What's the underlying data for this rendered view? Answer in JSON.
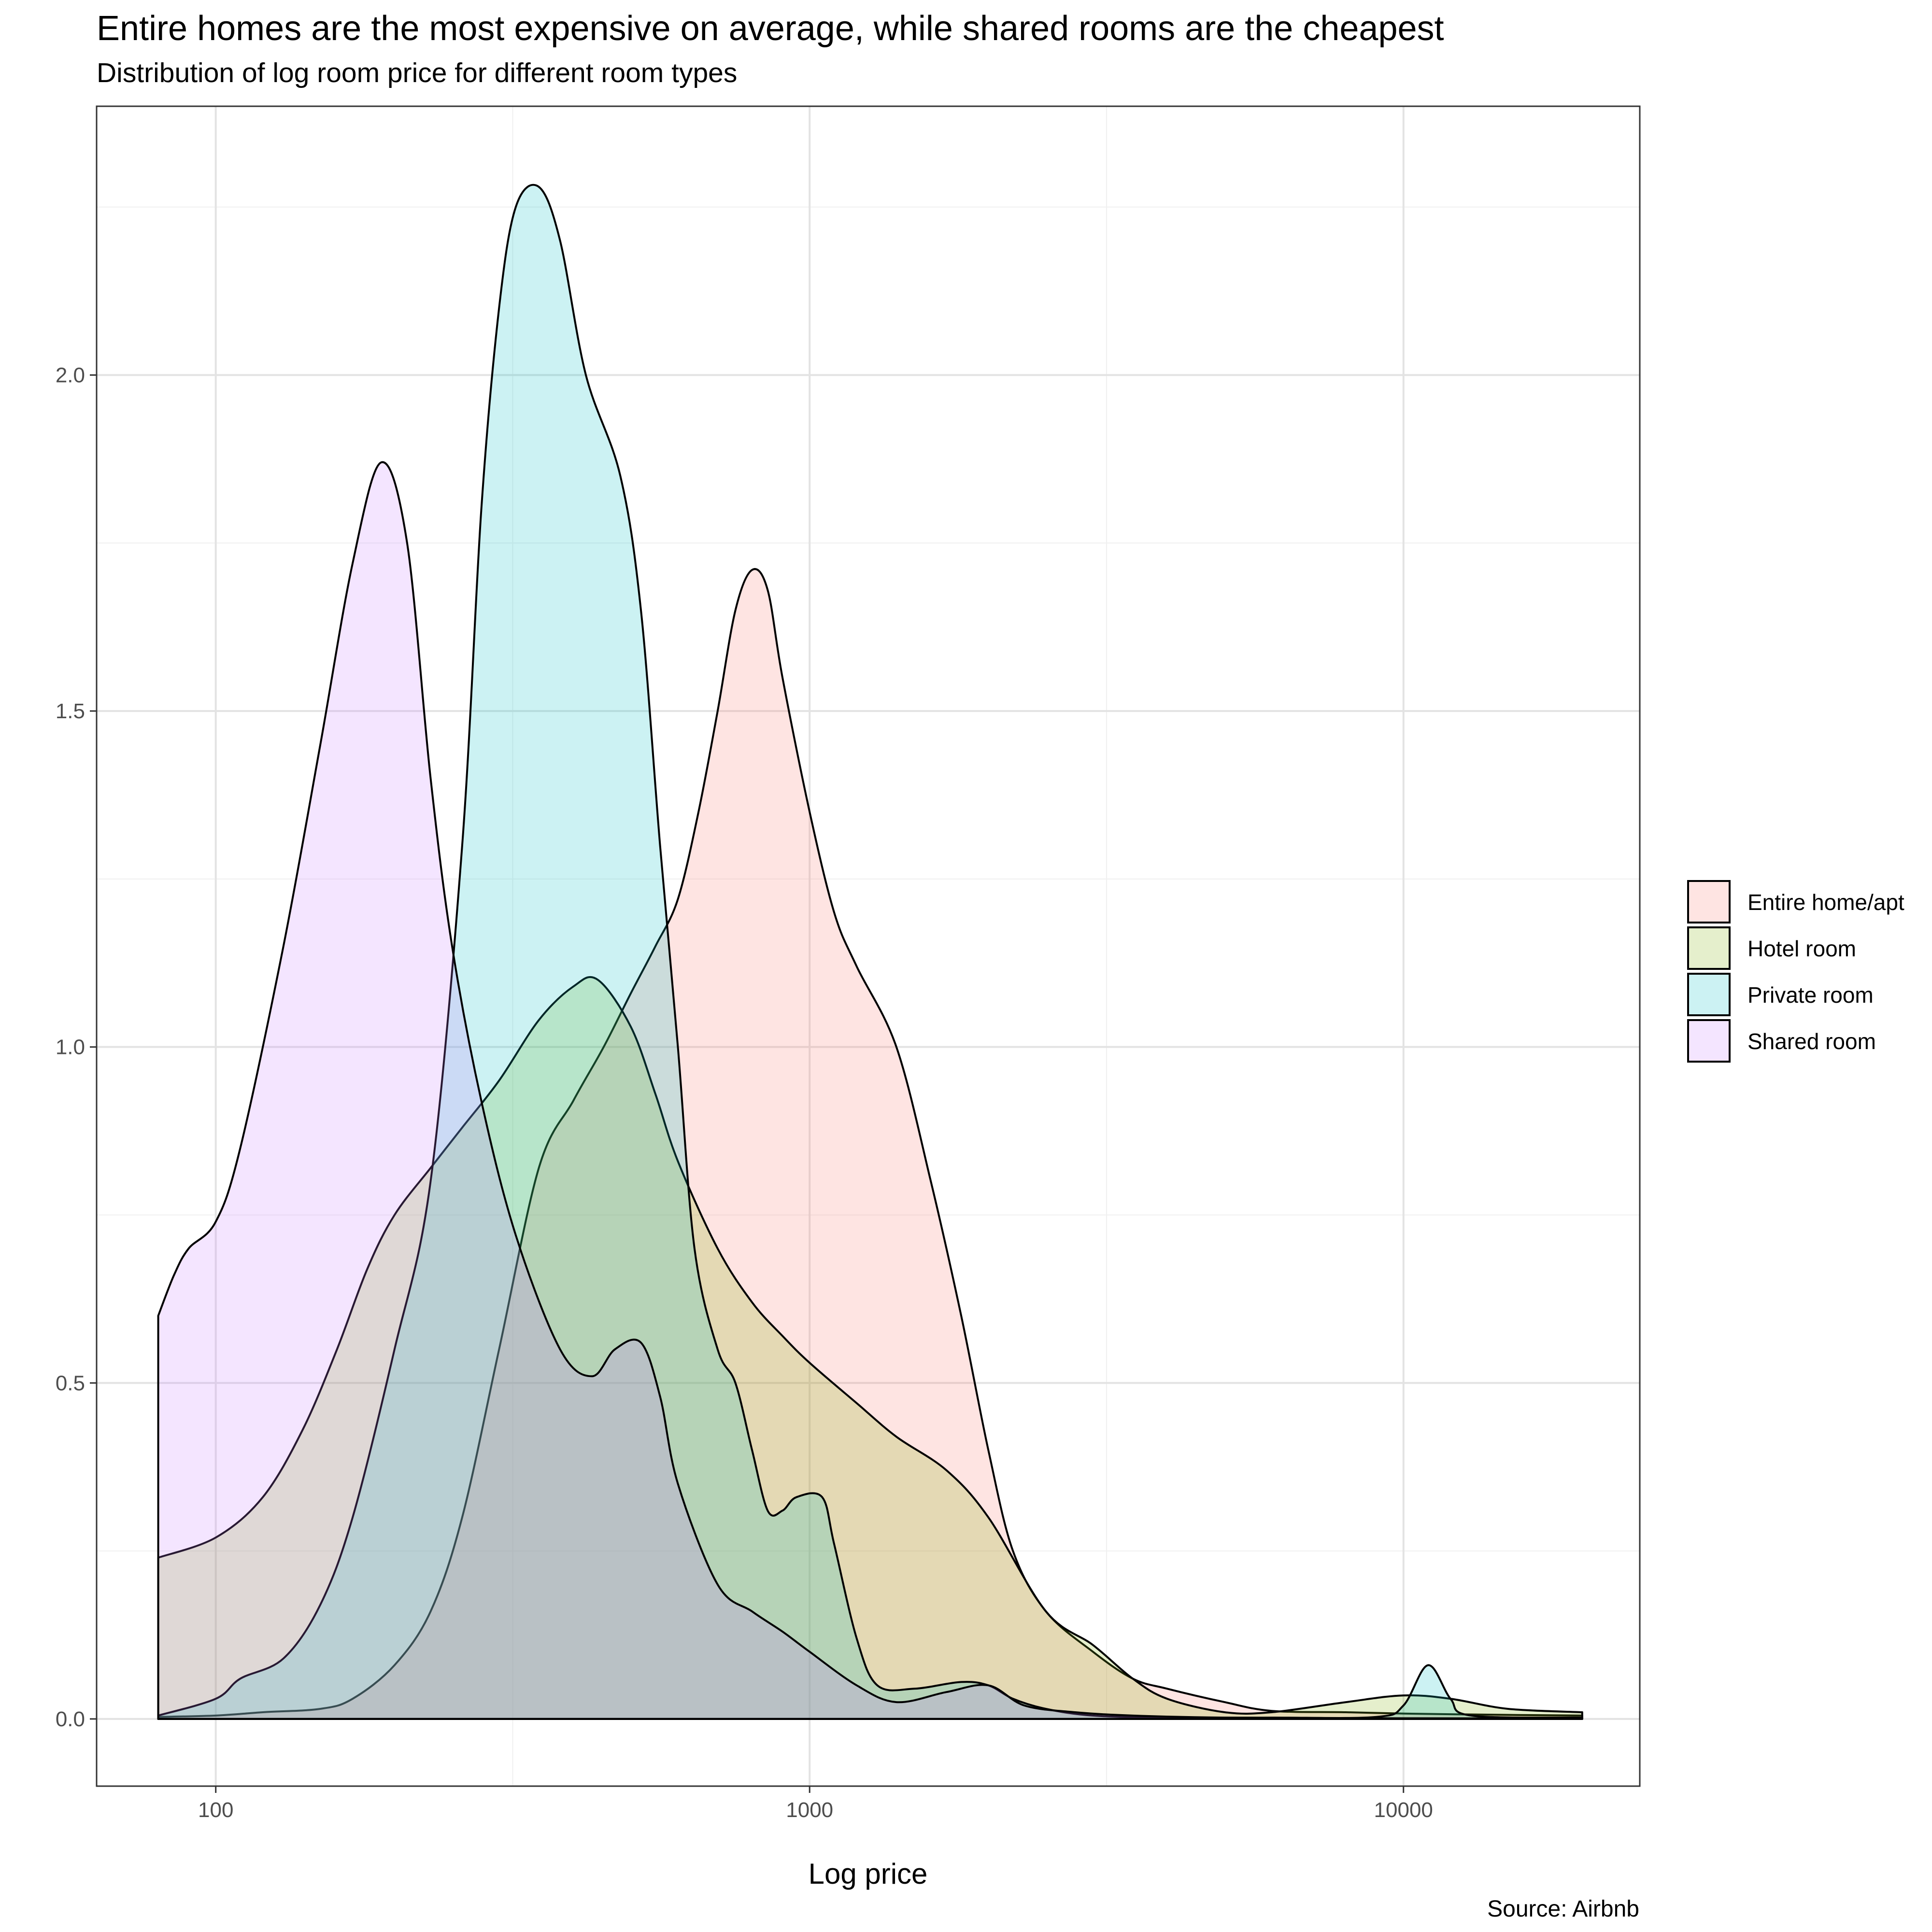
{
  "title": "Entire homes are the most expensive on average, while shared rooms are the cheapest",
  "subtitle": "Distribution of log room price for different room types",
  "caption": "Source: Airbnb",
  "chart_data": {
    "type": "area",
    "xlabel": "Log price",
    "ylabel": "",
    "x_scale": "log10",
    "xlim": [
      63,
      25000
    ],
    "ylim": [
      -0.1,
      2.4
    ],
    "x_ticks": [
      100,
      1000,
      10000
    ],
    "x_tick_labels": [
      "100",
      "1000",
      "10000"
    ],
    "y_ticks": [
      0,
      0.5,
      1,
      1.5,
      2
    ],
    "y_tick_labels": [
      "0.0",
      "0.5",
      "1.0",
      "1.5",
      "2.0"
    ],
    "grid": true,
    "legend_position": "right",
    "series": [
      {
        "name": "Entire home/apt",
        "color": "#F8766D",
        "points": [
          [
            80,
            0.003
          ],
          [
            100,
            0.005
          ],
          [
            120,
            0.01
          ],
          [
            150,
            0.015
          ],
          [
            170,
            0.03
          ],
          [
            200,
            0.08
          ],
          [
            230,
            0.16
          ],
          [
            260,
            0.3
          ],
          [
            300,
            0.55
          ],
          [
            350,
            0.82
          ],
          [
            400,
            0.92
          ],
          [
            450,
            1.0
          ],
          [
            500,
            1.08
          ],
          [
            550,
            1.15
          ],
          [
            600,
            1.22
          ],
          [
            650,
            1.35
          ],
          [
            700,
            1.5
          ],
          [
            750,
            1.65
          ],
          [
            800,
            1.71
          ],
          [
            850,
            1.68
          ],
          [
            900,
            1.55
          ],
          [
            1000,
            1.35
          ],
          [
            1100,
            1.2
          ],
          [
            1200,
            1.12
          ],
          [
            1400,
            1.0
          ],
          [
            1600,
            0.8
          ],
          [
            1800,
            0.6
          ],
          [
            2000,
            0.4
          ],
          [
            2200,
            0.25
          ],
          [
            2500,
            0.16
          ],
          [
            3000,
            0.1
          ],
          [
            3500,
            0.06
          ],
          [
            4000,
            0.045
          ],
          [
            5000,
            0.025
          ],
          [
            6000,
            0.012
          ],
          [
            8000,
            0.01
          ],
          [
            10000,
            0.008
          ],
          [
            15000,
            0.006
          ],
          [
            20000,
            0.005
          ]
        ]
      },
      {
        "name": "Hotel room",
        "color": "#7CAE00",
        "points": [
          [
            80,
            0.24
          ],
          [
            100,
            0.27
          ],
          [
            120,
            0.33
          ],
          [
            140,
            0.43
          ],
          [
            160,
            0.55
          ],
          [
            180,
            0.67
          ],
          [
            200,
            0.75
          ],
          [
            230,
            0.82
          ],
          [
            260,
            0.88
          ],
          [
            300,
            0.95
          ],
          [
            350,
            1.04
          ],
          [
            400,
            1.09
          ],
          [
            440,
            1.1
          ],
          [
            500,
            1.03
          ],
          [
            550,
            0.93
          ],
          [
            600,
            0.83
          ],
          [
            700,
            0.7
          ],
          [
            800,
            0.62
          ],
          [
            900,
            0.57
          ],
          [
            1000,
            0.53
          ],
          [
            1200,
            0.47
          ],
          [
            1400,
            0.42
          ],
          [
            1700,
            0.37
          ],
          [
            2000,
            0.3
          ],
          [
            2500,
            0.16
          ],
          [
            3000,
            0.11
          ],
          [
            3500,
            0.06
          ],
          [
            4000,
            0.03
          ],
          [
            5000,
            0.01
          ],
          [
            6000,
            0.01
          ],
          [
            8000,
            0.025
          ],
          [
            10000,
            0.035
          ],
          [
            12000,
            0.03
          ],
          [
            15000,
            0.015
          ],
          [
            20000,
            0.01
          ]
        ]
      },
      {
        "name": "Private room",
        "color": "#00BFC4",
        "points": [
          [
            80,
            0.005
          ],
          [
            100,
            0.03
          ],
          [
            110,
            0.06
          ],
          [
            130,
            0.09
          ],
          [
            150,
            0.17
          ],
          [
            170,
            0.3
          ],
          [
            200,
            0.55
          ],
          [
            230,
            0.8
          ],
          [
            260,
            1.3
          ],
          [
            280,
            1.8
          ],
          [
            300,
            2.1
          ],
          [
            320,
            2.25
          ],
          [
            350,
            2.28
          ],
          [
            380,
            2.2
          ],
          [
            420,
            2.0
          ],
          [
            480,
            1.85
          ],
          [
            520,
            1.65
          ],
          [
            560,
            1.3
          ],
          [
            600,
            1.0
          ],
          [
            640,
            0.7
          ],
          [
            700,
            0.55
          ],
          [
            750,
            0.5
          ],
          [
            800,
            0.4
          ],
          [
            850,
            0.31
          ],
          [
            900,
            0.31
          ],
          [
            950,
            0.33
          ],
          [
            1050,
            0.33
          ],
          [
            1100,
            0.26
          ],
          [
            1200,
            0.12
          ],
          [
            1300,
            0.05
          ],
          [
            1500,
            0.045
          ],
          [
            1800,
            0.055
          ],
          [
            2000,
            0.05
          ],
          [
            2200,
            0.03
          ],
          [
            2500,
            0.015
          ],
          [
            3000,
            0.005
          ],
          [
            4000,
            0.002
          ],
          [
            6000,
            0.002
          ],
          [
            9000,
            0.003
          ],
          [
            10000,
            0.02
          ],
          [
            11000,
            0.08
          ],
          [
            12000,
            0.03
          ],
          [
            13000,
            0.005
          ],
          [
            20000,
            0.002
          ]
        ]
      },
      {
        "name": "Shared room",
        "color": "#C77CFF",
        "points": [
          [
            80,
            0.6
          ],
          [
            85,
            0.66
          ],
          [
            90,
            0.7
          ],
          [
            100,
            0.74
          ],
          [
            110,
            0.85
          ],
          [
            130,
            1.15
          ],
          [
            150,
            1.45
          ],
          [
            170,
            1.72
          ],
          [
            190,
            1.87
          ],
          [
            210,
            1.75
          ],
          [
            230,
            1.4
          ],
          [
            250,
            1.15
          ],
          [
            280,
            0.92
          ],
          [
            320,
            0.72
          ],
          [
            380,
            0.55
          ],
          [
            430,
            0.51
          ],
          [
            470,
            0.55
          ],
          [
            520,
            0.56
          ],
          [
            560,
            0.48
          ],
          [
            600,
            0.35
          ],
          [
            700,
            0.2
          ],
          [
            800,
            0.16
          ],
          [
            900,
            0.13
          ],
          [
            1000,
            0.1
          ],
          [
            1200,
            0.05
          ],
          [
            1400,
            0.025
          ],
          [
            1700,
            0.04
          ],
          [
            2000,
            0.05
          ],
          [
            2300,
            0.02
          ],
          [
            2800,
            0.01
          ],
          [
            3500,
            0.005
          ],
          [
            5000,
            0.002
          ],
          [
            10000,
            0.001
          ],
          [
            20000,
            0.001
          ]
        ]
      }
    ]
  }
}
